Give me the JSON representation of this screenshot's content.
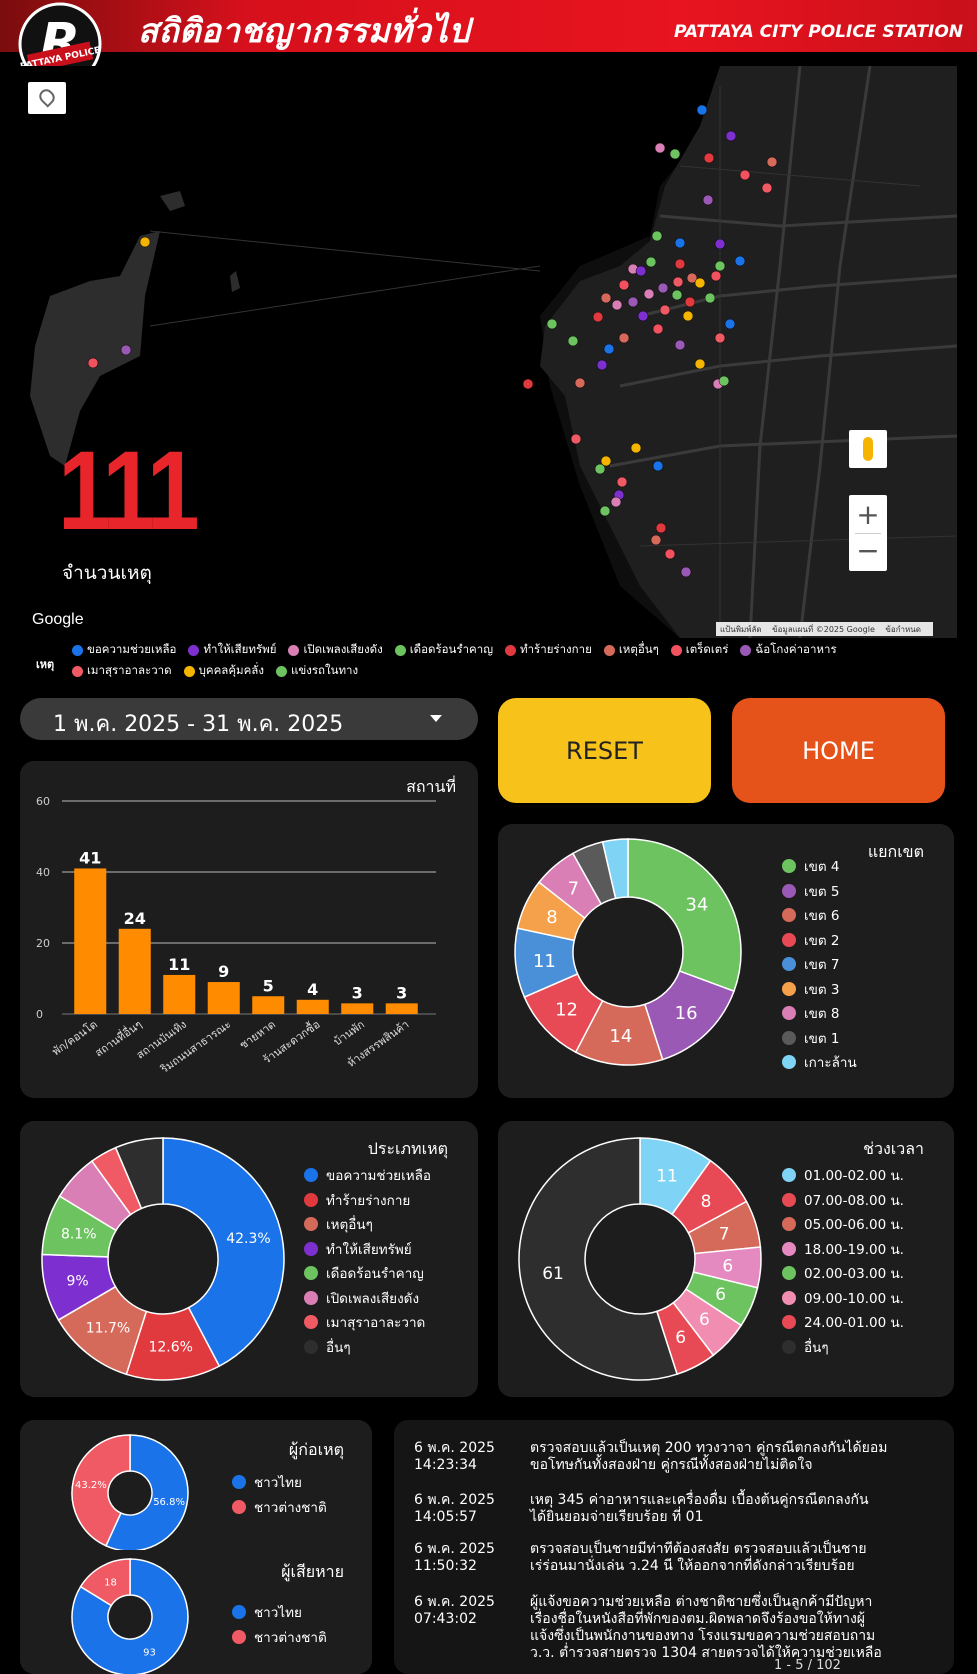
{
  "header": {
    "title": "สถิติอาชญากรรมทั่วไป",
    "station": "PATTAYA CITY POLICE STATION",
    "logo_text": "PATTAYA POLICE",
    "logo_letter": "R"
  },
  "kpi": {
    "value": "111",
    "label": "จำนวนเหตุ"
  },
  "map": {
    "brand": "Google",
    "attribution": [
      "แป้นพิมพ์ลัด",
      "ข้อมูลแผนที่ ©2025 Google",
      "ข้อกำหนด"
    ],
    "zoom_in": "+",
    "zoom_out": "−"
  },
  "legend": {
    "title": "เหตุ",
    "items": [
      {
        "label": "ขอความช่วยเหลือ",
        "color": "#1a73e8"
      },
      {
        "label": "ทำให้เสียทรัพย์",
        "color": "#7e2fd0"
      },
      {
        "label": "เปิดเพลงเสียงดัง",
        "color": "#d97fb5"
      },
      {
        "label": "เดือดร้อนรำคาญ",
        "color": "#6cc35f"
      },
      {
        "label": "ทำร้ายร่างกาย",
        "color": "#e0393e"
      },
      {
        "label": "เหตุอื่นๆ",
        "color": "#d66a5a"
      },
      {
        "label": "เตร็ดเตร่",
        "color": "#f25260"
      },
      {
        "label": "ฉ้อโกงค่าอาหาร",
        "color": "#9b59b6"
      },
      {
        "label": "เมาสุราอาละวาด",
        "color": "#f05a64"
      },
      {
        "label": "บุคคลคุ้มคลั่ง",
        "color": "#f4b400"
      },
      {
        "label": "แข่งรถในทาง",
        "color": "#6cc35f"
      }
    ]
  },
  "date_range": "1 พ.ค. 2025 - 31 พ.ค. 2025",
  "buttons": {
    "reset": "RESET",
    "home": "HOME"
  },
  "place_chart": {
    "title": "สถานที่",
    "chart_data": {
      "type": "bar",
      "categories": [
        "พัก/คอนโด",
        "สถานที่อื่นๆ",
        "สถานบันเทิง",
        "ริมถนนสาธารณะ",
        "ชายหาด",
        "ร้านสะดวกซื้อ",
        "บ้านพัก",
        "ห้างสรรพสินค้า"
      ],
      "values": [
        41,
        24,
        11,
        9,
        5,
        4,
        3,
        3
      ],
      "yticks": [
        "0",
        "20",
        "40",
        "60"
      ],
      "ylim": [
        0,
        60
      ],
      "color": "#ff8c00"
    }
  },
  "zone_chart": {
    "title": "แยกเขต",
    "chart_data": {
      "type": "pie",
      "labels": [
        "เขต 4",
        "เขต 5",
        "เขต 6",
        "เขต 2",
        "เขต 7",
        "เขต 3",
        "เขต 8",
        "เขต 1",
        "เกาะล้าน"
      ],
      "values": [
        34,
        16,
        14,
        12,
        11,
        8,
        7,
        5,
        4
      ],
      "display": [
        "34",
        "16",
        "14",
        "12",
        "11",
        "8",
        "7",
        "",
        ""
      ],
      "colors": [
        "#6cc35f",
        "#9b59b6",
        "#d66a5a",
        "#e84a55",
        "#4a90d9",
        "#f5a04a",
        "#d97fb5",
        "#5a5a5a",
        "#7fd4f5"
      ]
    }
  },
  "type_chart": {
    "title": "ประเภทเหตุ",
    "chart_data": {
      "type": "pie",
      "labels": [
        "ขอความช่วยเหลือ",
        "ทำร้ายร่างกาย",
        "เหตุอื่นๆ",
        "ทำให้เสียทรัพย์",
        "เดือดร้อนรำคาญ",
        "เปิดเพลงเสียงดัง",
        "เมาสุราอาละวาด",
        "อื่นๆ"
      ],
      "values": [
        42.3,
        12.6,
        11.7,
        9,
        8.1,
        6.3,
        3.6,
        6.4
      ],
      "display": [
        "42.3%",
        "12.6%",
        "11.7%",
        "9%",
        "8.1%",
        "",
        "",
        ""
      ],
      "colors": [
        "#1a73e8",
        "#e0393e",
        "#d66a5a",
        "#7e2fd0",
        "#6cc35f",
        "#d97fb5",
        "#f05a64",
        "#2e2e2e"
      ]
    }
  },
  "time_chart": {
    "title": "ช่วงเวลา",
    "chart_data": {
      "type": "pie",
      "labels": [
        "01.00-02.00 น.",
        "07.00-08.00 น.",
        "05.00-06.00 น.",
        "18.00-19.00 น.",
        "02.00-03.00 น.",
        "09.00-10.00 น.",
        "24.00-01.00 น.",
        "อื่นๆ"
      ],
      "values": [
        11,
        8,
        7,
        6,
        6,
        6,
        6,
        61
      ],
      "display": [
        "11",
        "8",
        "7",
        "6",
        "6",
        "6",
        "6",
        "61"
      ],
      "colors": [
        "#7fd4f5",
        "#e84a55",
        "#d66a5a",
        "#e58ac0",
        "#6cc35f",
        "#f08db0",
        "#e84a55",
        "#2e2e2e"
      ]
    }
  },
  "offender_chart": {
    "title": "ผู้ก่อเหตุ",
    "chart_data": {
      "type": "pie",
      "labels": [
        "ชาวไทย",
        "ชาวต่างชาติ"
      ],
      "values": [
        56.8,
        43.2
      ],
      "display": [
        "56.8%",
        "43.2%"
      ],
      "colors": [
        "#1a73e8",
        "#f05a64"
      ]
    }
  },
  "victim_chart": {
    "title": "ผู้เสียหาย",
    "chart_data": {
      "type": "pie",
      "labels": [
        "ชาวไทย",
        "ชาวต่างชาติ"
      ],
      "values": [
        93,
        18
      ],
      "display": [
        "93",
        "18"
      ],
      "colors": [
        "#1a73e8",
        "#f05a64"
      ]
    }
  },
  "news": {
    "rows": [
      {
        "date": "6 พ.ค. 2025",
        "time": "14:23:34",
        "line1": "ตรวจสอบแล้วเป็นเหตุ 200 ทวงวาจา คู่กรณีตกลงกันได้ยอม",
        "line2": "ขอโทษกันทั้งสองฝ่าย คู่กรณีทั้งสองฝ่ายไม่ติดใจ"
      },
      {
        "date": "6 พ.ค. 2025",
        "time": "14:05:57",
        "line1": "เหตุ 345 ค่าอาหารและเครื่องดื่ม เบื้องต้นคู่กรณีตกลงกัน",
        "line2": "ได้ยินยอมจ่ายเรียบร้อย ที่ 01"
      },
      {
        "date": "6 พ.ค. 2025",
        "time": "11:50:32",
        "line1": "ตรวจสอบเป็นชายมีท่าทีต้องสงสัย ตรวจสอบแล้วเป็นชาย",
        "line2": "เร่ร่อนมานั่งเล่น ว.24 นี ให้ออกจากที่ดังกล่าวเรียบร้อย"
      },
      {
        "date": "6 พ.ค. 2025",
        "time": "07:43:02",
        "line1": "ผู้แจ้งขอความช่วยเหลือ ต่างชาติชายซึ่งเป็นลูกค้ามีปัญหา",
        "line2": "เรื่องชื่อในหนังสือที่พักของตม.ผิดพลาดจึงร้องขอให้ทางผู้",
        "line3": "แจ้งซึ่งเป็นพนักงานของทาง โรงแรมขอความช่วยสอบถาม",
        "line4": "ว.ว. ต่ำรวจสายตรวจ 1304 สายตรวจได้ให้ความช่วยเหลือ"
      }
    ],
    "pager": "1 - 5 / 102"
  }
}
